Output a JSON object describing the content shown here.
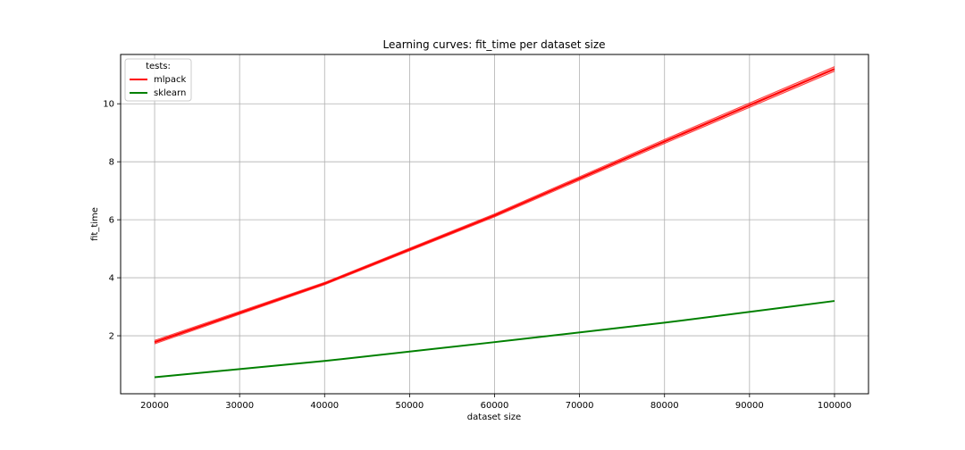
{
  "chart_data": {
    "type": "line",
    "title": "Learning curves: fit_time per dataset size",
    "xlabel": "dataset size",
    "ylabel": "fit_time",
    "x": [
      20000,
      40000,
      60000,
      80000,
      100000
    ],
    "xlim": [
      16000,
      104000
    ],
    "ylim": [
      0.0,
      11.7
    ],
    "xticks": [
      20000,
      30000,
      40000,
      50000,
      60000,
      70000,
      80000,
      90000,
      100000
    ],
    "yticks": [
      2,
      4,
      6,
      8,
      10
    ],
    "grid": true,
    "legend": {
      "title": "tests:",
      "position": "top-left"
    },
    "series": [
      {
        "name": "mlpack",
        "color": "#ff0000",
        "values": [
          1.78,
          3.8,
          6.15,
          8.7,
          11.2
        ],
        "band_lower": [
          1.72,
          3.76,
          6.1,
          8.63,
          11.12
        ],
        "band_upper": [
          1.84,
          3.84,
          6.2,
          8.77,
          11.28
        ]
      },
      {
        "name": "sklearn",
        "color": "#008000",
        "values": [
          0.57,
          1.13,
          1.78,
          2.45,
          3.2
        ]
      }
    ]
  }
}
